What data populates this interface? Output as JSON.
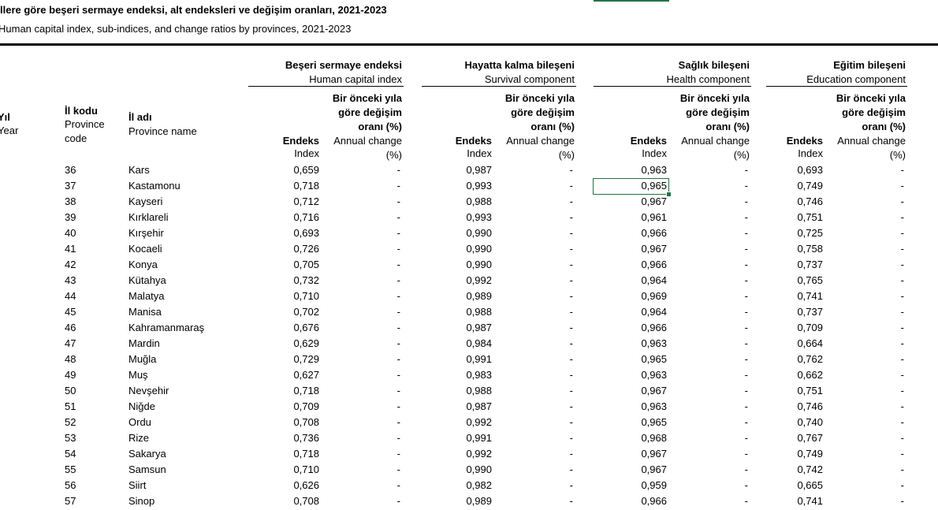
{
  "title": "llere göre beşeri sermaye endeksi, alt endeksleri ve değişim oranları, 2021-2023",
  "subtitle": "Human capital index, sub-indices, and change ratios by provinces, 2021-2023",
  "table": {
    "year": {
      "tr": "Yıl",
      "en": "Year"
    },
    "code": {
      "tr": "İl kodu",
      "en": "Province code"
    },
    "name": {
      "tr": "İl adı",
      "en": "Province name"
    },
    "groups": [
      {
        "tr": "Beşeri sermaye endeksi",
        "en": "Human capital index",
        "change_tr": "Bir önceki yıla göre değişim oranı (%)",
        "index_tr": "Endeks",
        "index_en": "Index",
        "change_en": "Annual change (%)"
      },
      {
        "tr": "Hayatta kalma bileşeni",
        "en": "Survival component",
        "change_tr": "Bir önceki yıla göre değişim oranı (%)",
        "index_tr": "Endeks",
        "index_en": "Index",
        "change_en": "Annual change (%)"
      },
      {
        "tr": "Sağlık bileşeni",
        "en": "Health component",
        "change_tr": "Bir önceki yıla göre değişim oranı (%)",
        "index_tr": "Endeks",
        "index_en": "Index",
        "change_en": "Annual change (%)"
      },
      {
        "tr": "Eğitim bileşeni",
        "en": "Education component",
        "change_tr": "Bir önceki yıla göre değişim oranı (%)",
        "index_tr": "Endeks",
        "index_en": "Index",
        "change_en": "Annual change (%)"
      }
    ],
    "rows": [
      [
        36,
        "Kars",
        "0,659",
        "-",
        "0,987",
        "-",
        "0,963",
        "-",
        "0,693",
        "-"
      ],
      [
        37,
        "Kastamonu",
        "0,718",
        "-",
        "0,993",
        "-",
        "0,965",
        "-",
        "0,749",
        "-"
      ],
      [
        38,
        "Kayseri",
        "0,712",
        "-",
        "0,988",
        "-",
        "0,967",
        "-",
        "0,746",
        "-"
      ],
      [
        39,
        "Kırklareli",
        "0,716",
        "-",
        "0,993",
        "-",
        "0,961",
        "-",
        "0,751",
        "-"
      ],
      [
        40,
        "Kırşehir",
        "0,693",
        "-",
        "0,990",
        "-",
        "0,966",
        "-",
        "0,725",
        "-"
      ],
      [
        41,
        "Kocaeli",
        "0,726",
        "-",
        "0,990",
        "-",
        "0,967",
        "-",
        "0,758",
        "-"
      ],
      [
        42,
        "Konya",
        "0,705",
        "-",
        "0,990",
        "-",
        "0,966",
        "-",
        "0,737",
        "-"
      ],
      [
        43,
        "Kütahya",
        "0,732",
        "-",
        "0,992",
        "-",
        "0,964",
        "-",
        "0,765",
        "-"
      ],
      [
        44,
        "Malatya",
        "0,710",
        "-",
        "0,989",
        "-",
        "0,969",
        "-",
        "0,741",
        "-"
      ],
      [
        45,
        "Manisa",
        "0,702",
        "-",
        "0,988",
        "-",
        "0,964",
        "-",
        "0,737",
        "-"
      ],
      [
        46,
        "Kahramanmaraş",
        "0,676",
        "-",
        "0,987",
        "-",
        "0,966",
        "-",
        "0,709",
        "-"
      ],
      [
        47,
        "Mardin",
        "0,629",
        "-",
        "0,984",
        "-",
        "0,963",
        "-",
        "0,664",
        "-"
      ],
      [
        48,
        "Muğla",
        "0,729",
        "-",
        "0,991",
        "-",
        "0,965",
        "-",
        "0,762",
        "-"
      ],
      [
        49,
        "Muş",
        "0,627",
        "-",
        "0,983",
        "-",
        "0,963",
        "-",
        "0,662",
        "-"
      ],
      [
        50,
        "Nevşehir",
        "0,718",
        "-",
        "0,988",
        "-",
        "0,967",
        "-",
        "0,751",
        "-"
      ],
      [
        51,
        "Niğde",
        "0,709",
        "-",
        "0,987",
        "-",
        "0,963",
        "-",
        "0,746",
        "-"
      ],
      [
        52,
        "Ordu",
        "0,708",
        "-",
        "0,992",
        "-",
        "0,965",
        "-",
        "0,740",
        "-"
      ],
      [
        53,
        "Rize",
        "0,736",
        "-",
        "0,991",
        "-",
        "0,968",
        "-",
        "0,767",
        "-"
      ],
      [
        54,
        "Sakarya",
        "0,718",
        "-",
        "0,992",
        "-",
        "0,967",
        "-",
        "0,749",
        "-"
      ],
      [
        55,
        "Samsun",
        "0,710",
        "-",
        "0,990",
        "-",
        "0,967",
        "-",
        "0,742",
        "-"
      ],
      [
        56,
        "Siirt",
        "0,626",
        "-",
        "0,982",
        "-",
        "0,959",
        "-",
        "0,665",
        "-"
      ],
      [
        57,
        "Sinop",
        "0,708",
        "-",
        "0,989",
        "-",
        "0,966",
        "-",
        "0,741",
        "-"
      ]
    ]
  }
}
